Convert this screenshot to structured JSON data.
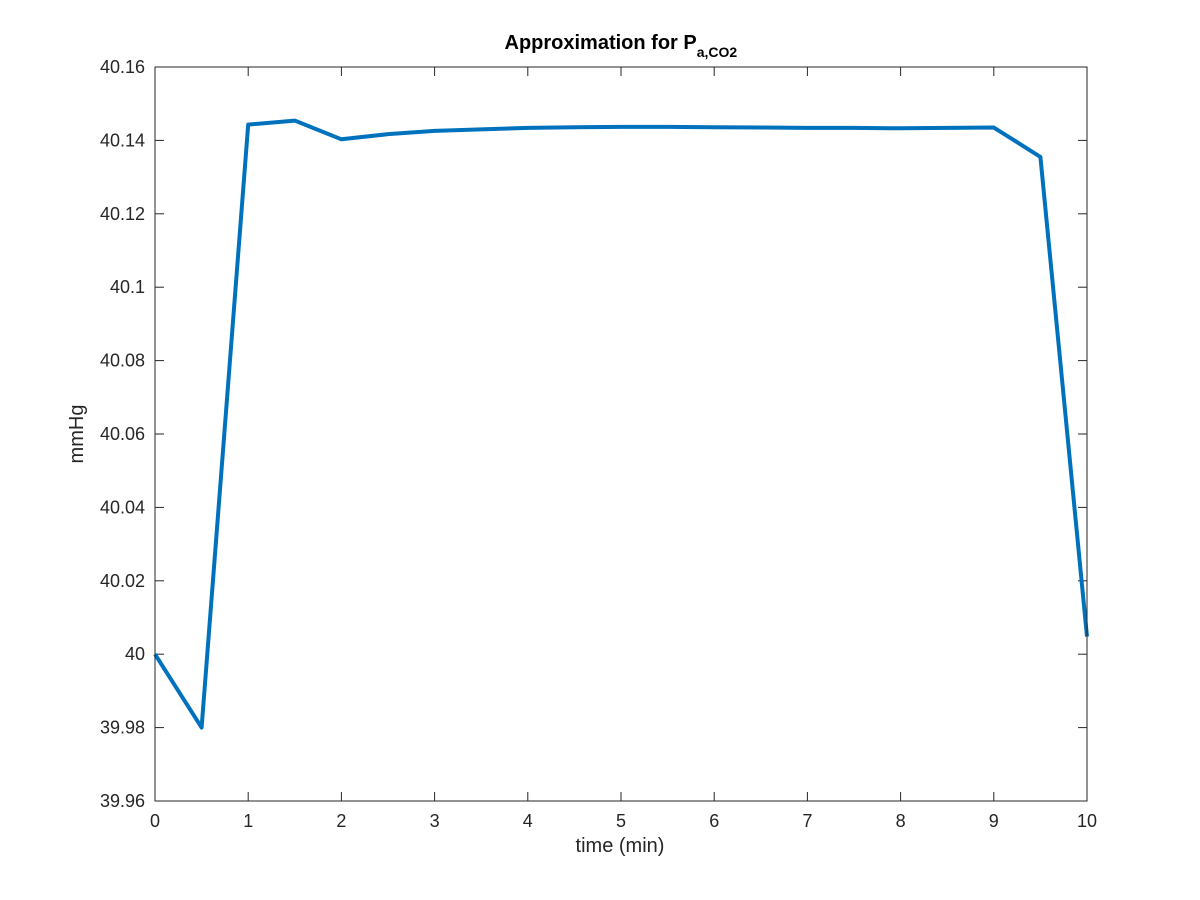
{
  "chart_data": {
    "type": "line",
    "title": "Approximation for P",
    "title_subscript": "a,CO2",
    "xlabel": "time (min)",
    "ylabel": "mmHg",
    "xlim": [
      0,
      10
    ],
    "ylim": [
      39.96,
      40.16
    ],
    "xticks": [
      0,
      1,
      2,
      3,
      4,
      5,
      6,
      7,
      8,
      9,
      10
    ],
    "xtick_labels": [
      "0",
      "1",
      "2",
      "3",
      "4",
      "5",
      "6",
      "7",
      "8",
      "9",
      "10"
    ],
    "yticks": [
      39.96,
      39.98,
      40,
      40.02,
      40.04,
      40.06,
      40.08,
      40.1,
      40.12,
      40.14,
      40.16
    ],
    "ytick_labels": [
      "39.96",
      "39.98",
      "40",
      "40.02",
      "40.04",
      "40.06",
      "40.08",
      "40.1",
      "40.12",
      "40.14",
      "40.16"
    ],
    "grid": false,
    "box": true,
    "series": [
      {
        "color": "#0072bd",
        "x": [
          0,
          0.5,
          1,
          1.5,
          2,
          2.5,
          3,
          3.5,
          4,
          4.5,
          5,
          5.5,
          6,
          6.5,
          7,
          7.5,
          8,
          8.5,
          9,
          9.5,
          10
        ],
        "y": [
          40.0,
          39.98,
          40.1443,
          40.1454,
          40.1403,
          40.1417,
          40.1426,
          40.143,
          40.1434,
          40.1436,
          40.1437,
          40.1437,
          40.1436,
          40.1435,
          40.1434,
          40.1434,
          40.1433,
          40.1434,
          40.1435,
          40.1355,
          40.0048
        ]
      }
    ]
  }
}
